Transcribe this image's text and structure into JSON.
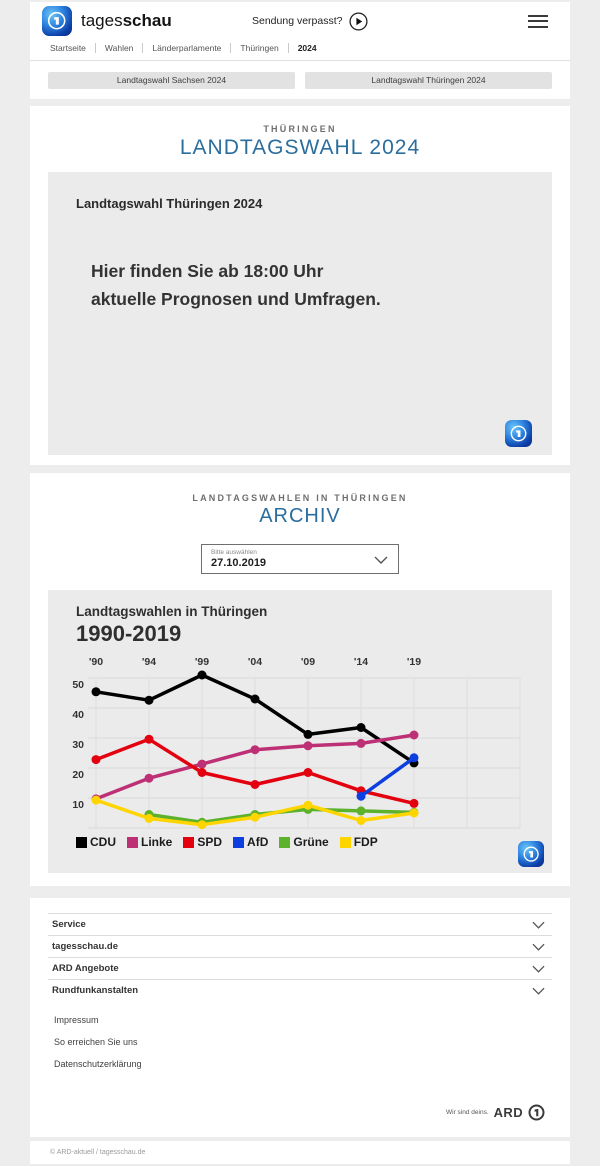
{
  "header": {
    "brand": {
      "regular": "tages",
      "bold": "schau"
    },
    "missed_show_label": "Sendung verpasst?",
    "nav": [
      "Startseite",
      "Wahlen",
      "Länderparlamente",
      "Thüringen",
      "2024"
    ]
  },
  "quicklinks": [
    "Landtagswahl Sachsen 2024",
    "Landtagswahl Thüringen 2024"
  ],
  "main": {
    "overline": "THÜRINGEN",
    "title": "LANDTAGSWAHL 2024",
    "card_title": "Landtagswahl Thüringen 2024",
    "message_lines": [
      "Hier finden Sie ab 18:00 Uhr",
      "aktuelle Prognosen und Umfragen."
    ]
  },
  "archive": {
    "overline": "LANDTAGSWAHLEN IN THÜRINGEN",
    "title": "ARCHIV",
    "select_label": "Bitte auswählen",
    "select_value": "27.10.2019"
  },
  "chart_data": {
    "type": "line",
    "title": "Landtagswahlen in Thüringen",
    "subtitle": "1990-2019",
    "x": [
      "'90",
      "'94",
      "'99",
      "'04",
      "'09",
      "'14",
      "'19"
    ],
    "ylim": [
      0,
      55
    ],
    "yticks": [
      10,
      20,
      30,
      40,
      50
    ],
    "grid": true,
    "legend_position": "bottom",
    "series": [
      {
        "name": "CDU",
        "color": "#000000",
        "values": [
          45.4,
          42.6,
          51.0,
          43.0,
          31.2,
          33.5,
          21.7
        ]
      },
      {
        "name": "Linke",
        "color": "#be3075",
        "values": [
          9.7,
          16.6,
          21.3,
          26.1,
          27.4,
          28.2,
          31.0
        ]
      },
      {
        "name": "SPD",
        "color": "#e3000f",
        "values": [
          22.8,
          29.6,
          18.5,
          14.5,
          18.5,
          12.4,
          8.2
        ]
      },
      {
        "name": "AfD",
        "color": "#0d3fe0",
        "values": [
          null,
          null,
          null,
          null,
          null,
          10.6,
          23.4
        ]
      },
      {
        "name": "Grüne",
        "color": "#5cb22b",
        "values": [
          null,
          4.5,
          1.9,
          4.5,
          6.2,
          5.7,
          5.2
        ]
      },
      {
        "name": "FDP",
        "color": "#ffd500",
        "values": [
          9.3,
          3.2,
          1.1,
          3.6,
          7.6,
          2.5,
          5.0
        ]
      }
    ]
  },
  "footer": {
    "accordion": [
      "Service",
      "tagesschau.de",
      "ARD Angebote",
      "Rundfunkanstalten"
    ],
    "links": [
      "Impressum",
      "So erreichen Sie uns",
      "Datenschutzerklärung"
    ],
    "ard_claim": "Wir sind deins.",
    "ard_brand": "ARD",
    "copyright": "© ARD-aktuell / tagesschau.de"
  },
  "icons": {
    "header_menu": "hamburger-icon",
    "missed_show": "play-circle-icon",
    "select": "chevron-down-icon",
    "accordion": "chevron-down-icon",
    "brand_logos": [
      "tagesschau-logo",
      "ard-logo"
    ]
  },
  "colors": {
    "accent_blue": "#2b6e9e",
    "page_bg": "#ededed",
    "card_gray": "#ebebeb",
    "button_gray": "#e2e2e2"
  }
}
